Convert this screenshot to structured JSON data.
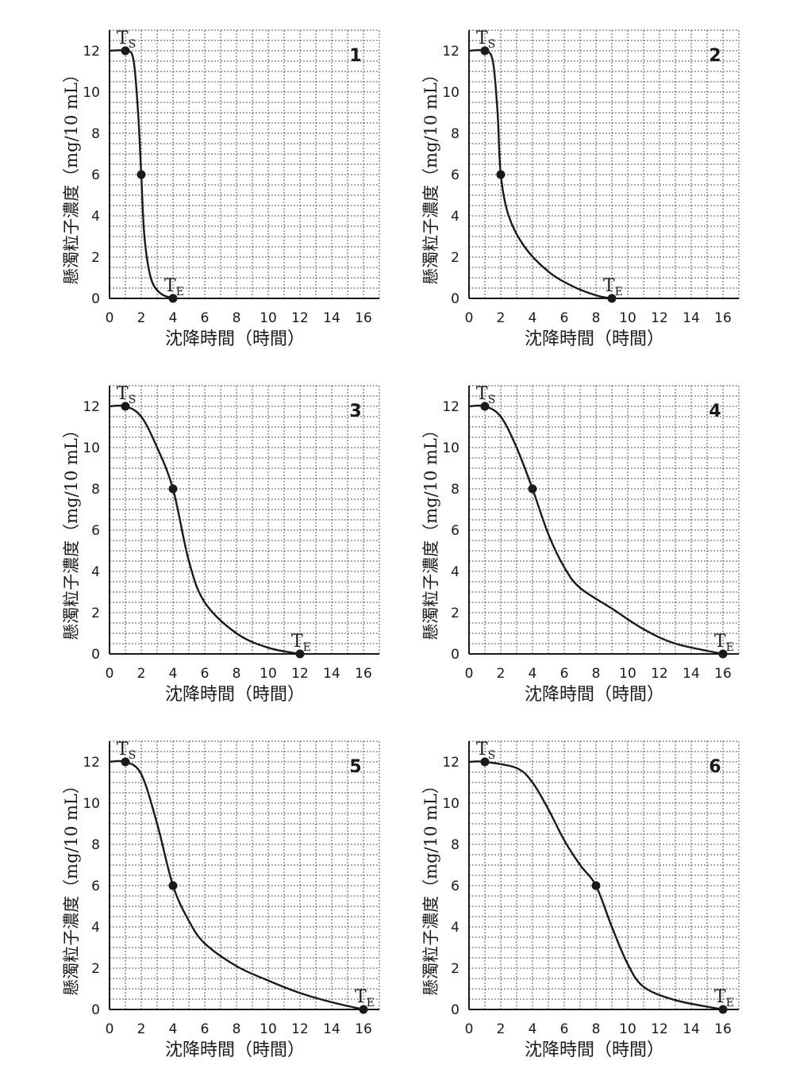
{
  "chart_data": [
    {
      "type": "line",
      "number": "1",
      "xlabel": "沈降時間（時間）",
      "ylabel": "懸濁粒子濃度（mg/10 mL）",
      "xlim": [
        0,
        17
      ],
      "ylim": [
        0,
        13
      ],
      "xticks": [
        "0",
        "2",
        "4",
        "6",
        "8",
        "10",
        "12",
        "14",
        "16"
      ],
      "yticks": [
        "0",
        "2",
        "4",
        "6",
        "8",
        "10",
        "12"
      ],
      "grid": true,
      "curve": [
        [
          0,
          12
        ],
        [
          1,
          12
        ],
        [
          1.5,
          11.6
        ],
        [
          1.8,
          9
        ],
        [
          2,
          6
        ],
        [
          2.2,
          3
        ],
        [
          2.6,
          1
        ],
        [
          3.2,
          0.25
        ],
        [
          4,
          0
        ]
      ],
      "markers": [
        {
          "x": 1,
          "y": 12,
          "label": "T",
          "sub": "S"
        },
        {
          "x": 2,
          "y": 6,
          "label": "",
          "sub": ""
        },
        {
          "x": 4,
          "y": 0,
          "label": "T",
          "sub": "E"
        }
      ]
    },
    {
      "type": "line",
      "number": "2",
      "xlabel": "沈降時間（時間）",
      "ylabel": "懸濁粒子濃度（mg/10 mL）",
      "xlim": [
        0,
        17
      ],
      "ylim": [
        0,
        13
      ],
      "xticks": [
        "0",
        "2",
        "4",
        "6",
        "8",
        "10",
        "12",
        "14",
        "16"
      ],
      "yticks": [
        "0",
        "2",
        "4",
        "6",
        "8",
        "10",
        "12"
      ],
      "grid": true,
      "curve": [
        [
          0,
          12
        ],
        [
          1,
          12
        ],
        [
          1.5,
          11.5
        ],
        [
          1.8,
          9
        ],
        [
          2,
          6
        ],
        [
          2.5,
          4
        ],
        [
          3.5,
          2.5
        ],
        [
          5,
          1.3
        ],
        [
          6.5,
          0.6
        ],
        [
          8,
          0.15
        ],
        [
          9,
          0
        ]
      ],
      "markers": [
        {
          "x": 1,
          "y": 12,
          "label": "T",
          "sub": "S"
        },
        {
          "x": 2,
          "y": 6,
          "label": "",
          "sub": ""
        },
        {
          "x": 9,
          "y": 0,
          "label": "T",
          "sub": "E"
        }
      ]
    },
    {
      "type": "line",
      "number": "3",
      "xlabel": "沈降時間（時間）",
      "ylabel": "懸濁粒子濃度（mg/10 mL）",
      "xlim": [
        0,
        17
      ],
      "ylim": [
        0,
        13
      ],
      "xticks": [
        "0",
        "2",
        "4",
        "6",
        "8",
        "10",
        "12",
        "14",
        "16"
      ],
      "yticks": [
        "0",
        "2",
        "4",
        "6",
        "8",
        "10",
        "12"
      ],
      "grid": true,
      "curve": [
        [
          0,
          12
        ],
        [
          1,
          12
        ],
        [
          2,
          11.5
        ],
        [
          3,
          10
        ],
        [
          4,
          8
        ],
        [
          5,
          4.5
        ],
        [
          6,
          2.5
        ],
        [
          8,
          1
        ],
        [
          10,
          0.3
        ],
        [
          12,
          0
        ]
      ],
      "markers": [
        {
          "x": 1,
          "y": 12,
          "label": "T",
          "sub": "S"
        },
        {
          "x": 4,
          "y": 8,
          "label": "",
          "sub": ""
        },
        {
          "x": 12,
          "y": 0,
          "label": "T",
          "sub": "E"
        }
      ]
    },
    {
      "type": "line",
      "number": "4",
      "xlabel": "沈降時間（時間）",
      "ylabel": "懸濁粒子濃度（mg/10 mL）",
      "xlim": [
        0,
        17
      ],
      "ylim": [
        0,
        13
      ],
      "xticks": [
        "0",
        "2",
        "4",
        "6",
        "8",
        "10",
        "12",
        "14",
        "16"
      ],
      "yticks": [
        "0",
        "2",
        "4",
        "6",
        "8",
        "10",
        "12"
      ],
      "grid": true,
      "curve": [
        [
          0,
          12
        ],
        [
          1,
          12
        ],
        [
          2,
          11.5
        ],
        [
          3,
          10
        ],
        [
          4,
          8
        ],
        [
          5,
          5.8
        ],
        [
          6,
          4.2
        ],
        [
          7,
          3.2
        ],
        [
          9,
          2.2
        ],
        [
          11,
          1.2
        ],
        [
          13,
          0.5
        ],
        [
          16,
          0
        ]
      ],
      "markers": [
        {
          "x": 1,
          "y": 12,
          "label": "T",
          "sub": "S"
        },
        {
          "x": 4,
          "y": 8,
          "label": "",
          "sub": ""
        },
        {
          "x": 16,
          "y": 0,
          "label": "T",
          "sub": "E"
        }
      ]
    },
    {
      "type": "line",
      "number": "5",
      "xlabel": "沈降時間（時間）",
      "ylabel": "懸濁粒子濃度（mg/10 mL）",
      "xlim": [
        0,
        17
      ],
      "ylim": [
        0,
        13
      ],
      "xticks": [
        "0",
        "2",
        "4",
        "6",
        "8",
        "10",
        "12",
        "14",
        "16"
      ],
      "yticks": [
        "0",
        "2",
        "4",
        "6",
        "8",
        "10",
        "12"
      ],
      "grid": true,
      "curve": [
        [
          0,
          12
        ],
        [
          1,
          12
        ],
        [
          2,
          11.4
        ],
        [
          3,
          9
        ],
        [
          4,
          6
        ],
        [
          5,
          4.3
        ],
        [
          6,
          3.2
        ],
        [
          8,
          2.1
        ],
        [
          10,
          1.4
        ],
        [
          12,
          0.8
        ],
        [
          14,
          0.35
        ],
        [
          16,
          0
        ]
      ],
      "markers": [
        {
          "x": 1,
          "y": 12,
          "label": "T",
          "sub": "S"
        },
        {
          "x": 4,
          "y": 6,
          "label": "",
          "sub": ""
        },
        {
          "x": 16,
          "y": 0,
          "label": "T",
          "sub": "E"
        }
      ]
    },
    {
      "type": "line",
      "number": "6",
      "xlabel": "沈降時間（時間）",
      "ylabel": "懸濁粒子濃度（mg/10 mL）",
      "xlim": [
        0,
        17
      ],
      "ylim": [
        0,
        13
      ],
      "xticks": [
        "0",
        "2",
        "4",
        "6",
        "8",
        "10",
        "12",
        "14",
        "16"
      ],
      "yticks": [
        "0",
        "2",
        "4",
        "6",
        "8",
        "10",
        "12"
      ],
      "grid": true,
      "curve": [
        [
          0,
          12
        ],
        [
          1,
          12
        ],
        [
          3,
          11.7
        ],
        [
          4,
          11
        ],
        [
          5,
          9.7
        ],
        [
          6,
          8.2
        ],
        [
          7,
          7
        ],
        [
          8,
          6
        ],
        [
          9,
          4
        ],
        [
          10,
          2.2
        ],
        [
          11,
          1.1
        ],
        [
          13,
          0.45
        ],
        [
          16,
          0
        ]
      ],
      "markers": [
        {
          "x": 1,
          "y": 12,
          "label": "T",
          "sub": "S"
        },
        {
          "x": 8,
          "y": 6,
          "label": "",
          "sub": ""
        },
        {
          "x": 16,
          "y": 0,
          "label": "T",
          "sub": "E"
        }
      ]
    }
  ],
  "style": {
    "line_color": "#1a1a1a",
    "grid_color": "#555555",
    "background": "#ffffff"
  }
}
